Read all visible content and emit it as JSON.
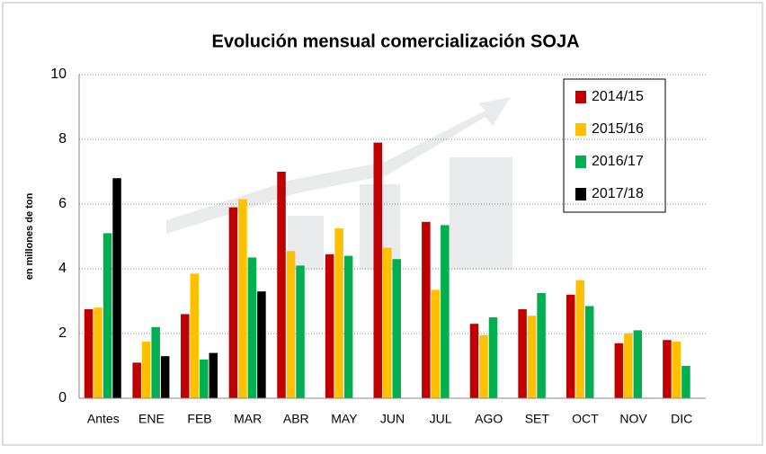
{
  "chart_data": {
    "type": "bar",
    "title": "Evolución mensual comercialización SOJA",
    "y_label": "en millones de ton",
    "categories": [
      "Antes",
      "ENE",
      "FEB",
      "MAR",
      "ABR",
      "MAY",
      "JUN",
      "JUL",
      "AGO",
      "SET",
      "OCT",
      "NOV",
      "DIC"
    ],
    "series": [
      {
        "name": "2014/15",
        "color": "#c00000",
        "values": [
          2.75,
          1.1,
          2.6,
          5.9,
          7.0,
          4.45,
          7.9,
          5.45,
          2.3,
          2.75,
          3.2,
          1.7,
          1.8
        ]
      },
      {
        "name": "2015/16",
        "color": "#ffc000",
        "values": [
          2.8,
          1.75,
          3.85,
          6.15,
          4.55,
          5.25,
          4.65,
          3.35,
          1.95,
          2.55,
          3.65,
          2.0,
          1.75
        ]
      },
      {
        "name": "2016/17",
        "color": "#00b050",
        "values": [
          5.1,
          2.2,
          1.2,
          4.35,
          4.1,
          4.4,
          4.3,
          5.35,
          2.5,
          3.25,
          2.85,
          2.1,
          1.0
        ]
      },
      {
        "name": "2017/18",
        "color": "#000000",
        "values": [
          6.8,
          1.3,
          1.4,
          3.3,
          null,
          null,
          null,
          null,
          null,
          null,
          null,
          null,
          null
        ]
      }
    ],
    "ylim": [
      0,
      10
    ],
    "yticks": [
      0,
      2,
      4,
      6,
      8,
      10
    ],
    "grid": true,
    "legend": "top-right"
  }
}
